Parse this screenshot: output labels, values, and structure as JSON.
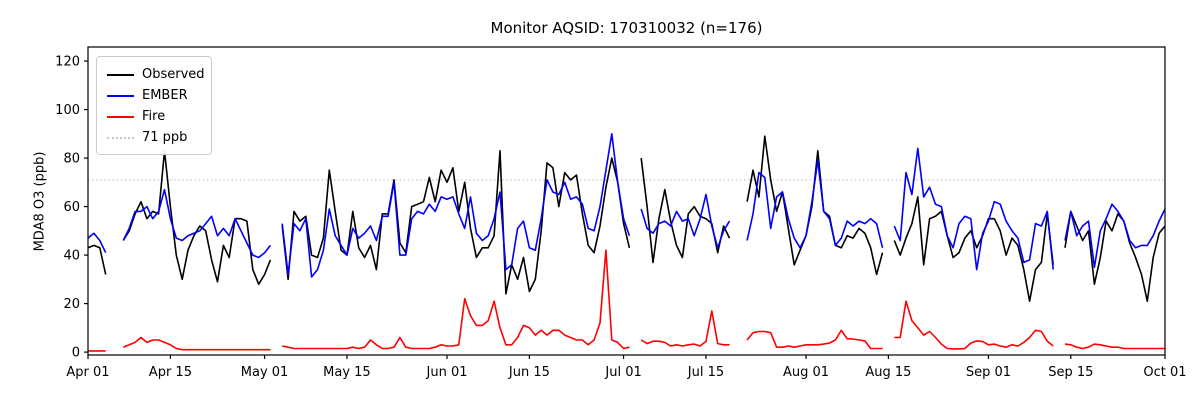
{
  "chart_data": {
    "type": "line",
    "title": "Monitor AQSID: 170310032 (n=176)",
    "xlabel": "",
    "ylabel": "MDA8 O3 (ppb)",
    "x_unit": "day",
    "x_range_labels": [
      "Apr 01",
      "Oct 01"
    ],
    "n_points_label": 176,
    "ylim": [
      -1.2,
      125.8
    ],
    "grid": false,
    "legend_position": "upper left",
    "y_ticks": [
      0,
      20,
      40,
      60,
      80,
      100,
      120
    ],
    "x_tick_days": [
      0,
      14,
      30,
      44,
      61,
      75,
      91,
      105,
      122,
      136,
      153,
      167,
      183
    ],
    "x_tick_labels": [
      "Apr 01",
      "Apr 15",
      "May 01",
      "May 15",
      "Jun 01",
      "Jun 15",
      "Jul 01",
      "Jul 15",
      "Aug 01",
      "Aug 15",
      "Sep 01",
      "Sep 15",
      "Oct 01"
    ],
    "threshold": {
      "value": 71,
      "label": "71 ppb",
      "color": "#c8c8c8",
      "style": "dotted"
    },
    "legend": {
      "items": [
        {
          "label": "Observed",
          "color": "#000000",
          "style": "solid"
        },
        {
          "label": "EMBER",
          "color": "#0000ff",
          "style": "solid"
        },
        {
          "label": "Fire",
          "color": "#ff0000",
          "style": "solid"
        },
        {
          "label": "71 ppb",
          "color": "#c8c8c8",
          "style": "dotted"
        }
      ]
    },
    "series": [
      {
        "name": "Observed",
        "color": "#000000",
        "values": [
          43,
          44,
          43,
          32,
          null,
          null,
          46,
          50,
          57,
          62,
          55,
          58,
          57,
          83,
          60,
          40,
          30,
          42,
          48,
          52,
          50,
          38,
          29,
          44,
          39,
          55,
          55,
          54,
          34,
          28,
          32,
          38,
          null,
          52,
          30,
          58,
          54,
          56,
          40,
          39,
          47,
          75,
          58,
          42,
          40,
          58,
          43,
          39,
          44,
          34,
          57,
          57,
          71,
          45,
          41,
          60,
          61,
          62,
          72,
          62,
          75,
          70,
          76,
          58,
          70,
          51,
          39,
          43,
          43,
          48,
          83,
          24,
          36,
          30,
          39,
          25,
          30,
          50,
          78,
          76,
          60,
          74,
          71,
          73,
          57,
          44,
          41,
          52,
          68,
          80,
          70,
          53,
          43,
          null,
          80,
          60,
          37,
          55,
          67,
          54,
          44,
          39,
          57,
          60,
          56,
          55,
          53,
          41,
          52,
          47,
          null,
          null,
          62,
          75,
          64,
          89,
          71,
          58,
          66,
          51,
          36,
          42,
          48,
          60,
          83,
          58,
          56,
          44,
          43,
          48,
          47,
          51,
          49,
          43,
          32,
          41,
          null,
          46,
          40,
          47,
          53,
          64,
          36,
          55,
          56,
          58,
          48,
          39,
          41,
          47,
          50,
          43,
          48,
          55,
          55,
          50,
          40,
          47,
          44,
          34,
          21,
          34,
          37,
          57,
          36,
          null,
          43,
          58,
          52,
          46,
          50,
          28,
          39,
          54,
          50,
          57,
          54,
          45,
          39,
          32,
          21,
          39,
          49,
          52
        ]
      },
      {
        "name": "EMBER",
        "color": "#0000ff",
        "values": [
          47,
          49,
          46,
          41,
          null,
          null,
          46,
          51,
          58,
          58,
          60,
          55,
          58,
          67,
          55,
          47,
          46,
          48,
          49,
          50,
          53,
          56,
          48,
          51,
          48,
          55,
          50,
          45,
          40,
          39,
          41,
          44,
          null,
          53,
          32,
          53,
          50,
          55,
          31,
          34,
          42,
          59,
          48,
          44,
          40,
          51,
          47,
          49,
          52,
          46,
          56,
          56,
          70,
          40,
          40,
          55,
          58,
          57,
          61,
          58,
          64,
          63,
          64,
          57,
          51,
          64,
          49,
          46,
          48,
          55,
          66,
          34,
          36,
          51,
          54,
          43,
          42,
          55,
          71,
          66,
          65,
          70,
          63,
          64,
          61,
          51,
          50,
          60,
          75,
          90,
          70,
          55,
          48,
          null,
          59,
          51,
          49,
          53,
          54,
          52,
          58,
          54,
          55,
          48,
          55,
          65,
          52,
          43,
          50,
          54,
          null,
          null,
          46,
          57,
          74,
          72,
          51,
          64,
          66,
          55,
          47,
          43,
          48,
          62,
          79,
          58,
          55,
          44,
          47,
          54,
          52,
          54,
          53,
          55,
          53,
          43,
          null,
          52,
          46,
          74,
          65,
          84,
          64,
          68,
          61,
          60,
          48,
          43,
          53,
          56,
          55,
          34,
          49,
          54,
          62,
          61,
          54,
          50,
          47,
          37,
          38,
          53,
          52,
          58,
          34,
          null,
          46,
          58,
          48,
          52,
          54,
          35,
          50,
          55,
          61,
          58,
          54,
          46,
          43,
          44,
          44,
          48,
          54,
          59
        ]
      },
      {
        "name": "Fire",
        "color": "#ff0000",
        "values": [
          0.5,
          0.5,
          0.5,
          0.5,
          null,
          null,
          2,
          3,
          4,
          6,
          4,
          5,
          5,
          4,
          3,
          1.5,
          1,
          1,
          1,
          1,
          1,
          1,
          1,
          1,
          1,
          1,
          1,
          1,
          1,
          1,
          1,
          1,
          null,
          2.5,
          2,
          1.5,
          1.5,
          1.5,
          1.5,
          1.5,
          1.5,
          1.5,
          1.5,
          1.5,
          1.5,
          2,
          1.5,
          2,
          5,
          3,
          1.5,
          1.5,
          2,
          6,
          2,
          1.5,
          1.5,
          1.5,
          1.5,
          2,
          3,
          2.5,
          2.5,
          3,
          22,
          15,
          11,
          11,
          13,
          21,
          10,
          3,
          3,
          6,
          11,
          10,
          7,
          9,
          7,
          9,
          9,
          7,
          6,
          5,
          5,
          3,
          5,
          12,
          42,
          5,
          4,
          1.5,
          2,
          null,
          5,
          3.5,
          4.5,
          4.5,
          4,
          2.5,
          3,
          2.5,
          3,
          3.3,
          2.5,
          4.4,
          17,
          3.5,
          3,
          3,
          null,
          null,
          5,
          8,
          8.5,
          8.5,
          8,
          2,
          2,
          2.5,
          2,
          2.5,
          3,
          3,
          3,
          3.3,
          3.7,
          5,
          9,
          5.5,
          5.4,
          5,
          4.6,
          1.5,
          1.5,
          1.5,
          null,
          6,
          6,
          21,
          13,
          10,
          7,
          8.5,
          6,
          3.3,
          1.5,
          1.3,
          1.3,
          1.5,
          3.7,
          4.6,
          4.4,
          3,
          3.3,
          2.5,
          2,
          3,
          2.5,
          4,
          6,
          9,
          8.5,
          4.5,
          2.5,
          null,
          3.3,
          3,
          2,
          1.5,
          2,
          3.3,
          3,
          2.5,
          2,
          2,
          1.5,
          1.5,
          1.5,
          1.5,
          1.5,
          1.5,
          1.5,
          1.5
        ]
      }
    ]
  }
}
